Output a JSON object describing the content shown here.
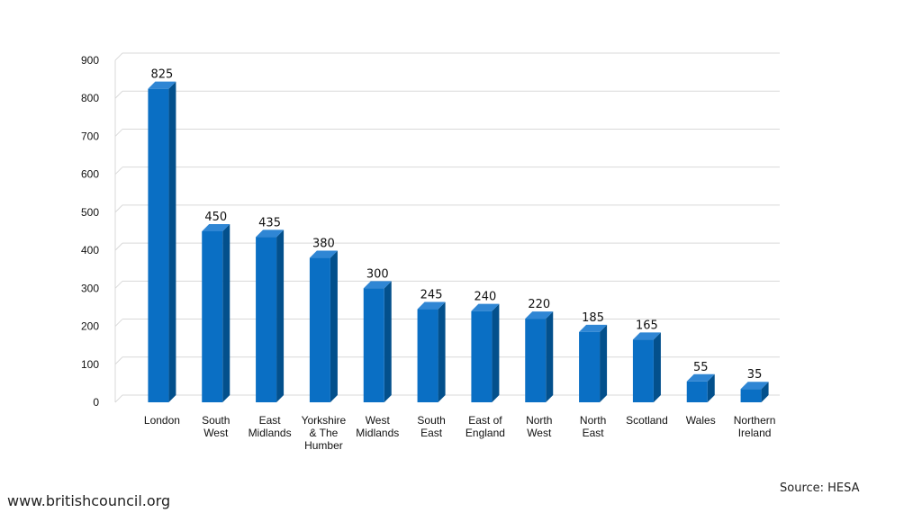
{
  "chart_data": {
    "type": "bar",
    "categories": [
      [
        "London"
      ],
      [
        "South",
        "West"
      ],
      [
        "East",
        "Midlands"
      ],
      [
        "Yorkshire",
        "& The",
        "Humber"
      ],
      [
        "West",
        "Midlands"
      ],
      [
        "South",
        "East"
      ],
      [
        "East of",
        "England"
      ],
      [
        "North",
        "West"
      ],
      [
        "North",
        "East"
      ],
      [
        "Scotland"
      ],
      [
        "Wales"
      ],
      [
        "Northern",
        "Ireland"
      ]
    ],
    "values": [
      825,
      450,
      435,
      380,
      300,
      245,
      240,
      220,
      185,
      165,
      55,
      35
    ],
    "value_labels": [
      "825",
      "450",
      "435",
      "380",
      "300",
      "245",
      "240",
      "220",
      "185",
      "165",
      "55",
      "35"
    ],
    "y_ticks": [
      "0",
      "100",
      "200",
      "300",
      "400",
      "500",
      "600",
      "700",
      "800",
      "900"
    ],
    "ylim": [
      0,
      900
    ],
    "grid": true,
    "bar_style": "3d",
    "colors": {
      "bar_front": "#0a6fc4",
      "bar_side": "#03508c",
      "bar_top": "#2f86d4",
      "grid": "#d9d9d9"
    }
  },
  "footer": {
    "website": "www.britishcouncil.org",
    "source": "Source: HESA"
  }
}
